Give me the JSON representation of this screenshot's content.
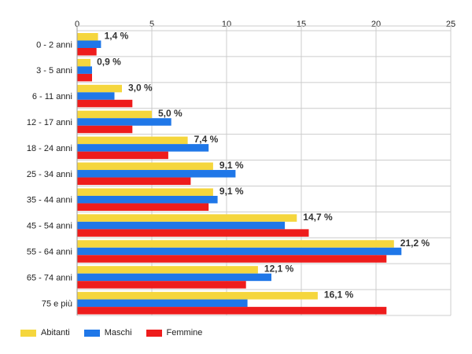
{
  "chart_data": {
    "type": "bar",
    "orientation": "horizontal",
    "categories": [
      "0 - 2 anni",
      "3 - 5 anni",
      "6 - 11 anni",
      "12 - 17 anni",
      "18 - 24 anni",
      "25 - 34 anni",
      "35 - 44 anni",
      "45 - 54 anni",
      "55 - 64 anni",
      "65 - 74 anni",
      "75 e più"
    ],
    "series": [
      {
        "name": "Abitanti",
        "color": "#f5d63d",
        "values": [
          1.4,
          0.9,
          3.0,
          5.0,
          7.4,
          9.1,
          9.1,
          14.7,
          21.2,
          12.1,
          16.1
        ]
      },
      {
        "name": "Maschi",
        "color": "#1f77e8",
        "values": [
          1.6,
          1.0,
          2.5,
          6.3,
          8.8,
          10.6,
          9.4,
          13.9,
          21.7,
          13.0,
          11.4
        ]
      },
      {
        "name": "Femmine",
        "color": "#ee1c1c",
        "values": [
          1.3,
          1.0,
          3.7,
          3.7,
          6.1,
          7.6,
          8.8,
          15.5,
          20.7,
          11.3,
          20.7
        ]
      }
    ],
    "data_labels": [
      "1,4 %",
      "0,9 %",
      "3,0 %",
      "5,0 %",
      "7,4 %",
      "9,1 %",
      "9,1 %",
      "14,7 %",
      "21,2 %",
      "12,1 %",
      "16,1 %"
    ],
    "xlim": [
      0,
      25
    ],
    "xticks": [
      0,
      5,
      10,
      15,
      20,
      25
    ],
    "x_axis_position": "top",
    "grid": true,
    "legend_position": "bottom-left"
  }
}
